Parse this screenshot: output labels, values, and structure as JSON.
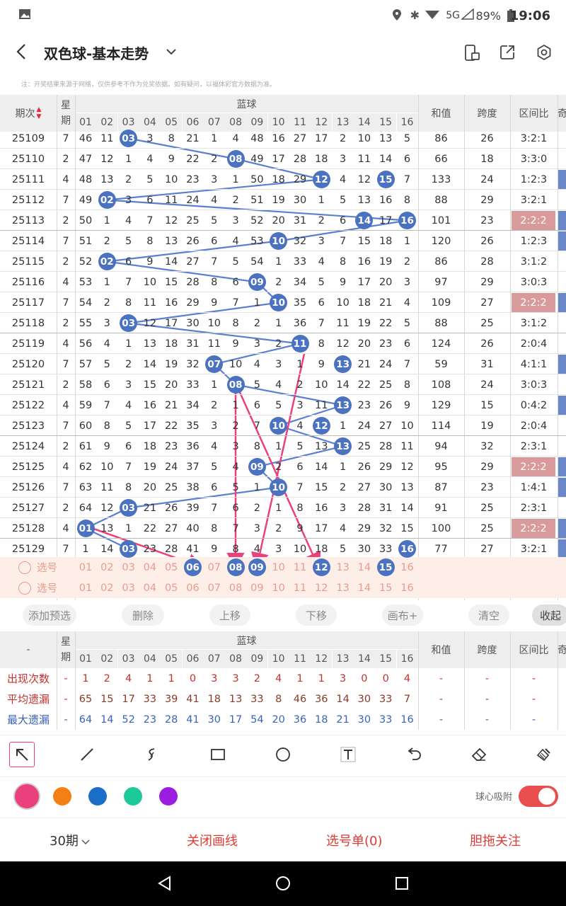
{
  "status": {
    "time": "19:06",
    "battery": "89%",
    "network": "5G"
  },
  "header": {
    "title": "双色球-基本走势"
  },
  "note": "注：开奖结果来源于网络，仅供参考不作为兑奖依据。如有疑问，以福体彩官方数据为准。",
  "table": {
    "col_period": "期次",
    "col_week": "星期",
    "col_blue": "蓝球",
    "col_sum": "和值",
    "col_span": "跨度",
    "col_ratio": "区间比",
    "numbers": [
      "01",
      "02",
      "03",
      "04",
      "05",
      "06",
      "07",
      "08",
      "09",
      "10",
      "11",
      "12",
      "13",
      "14",
      "15",
      "16"
    ],
    "rows": [
      {
        "p": "25109",
        "w": "7",
        "c": [
          "46",
          "11",
          "03",
          "3",
          "8",
          "21",
          "1",
          "4",
          "48",
          "16",
          "27",
          "17",
          "2",
          "10",
          "13",
          "5"
        ],
        "sum": "86",
        "span": "26",
        "ratio": "3:2:1"
      },
      {
        "p": "25110",
        "w": "2",
        "c": [
          "47",
          "12",
          "1",
          "4",
          "9",
          "22",
          "2",
          "08",
          "49",
          "17",
          "28",
          "18",
          "3",
          "11",
          "14",
          "6"
        ],
        "sum": "66",
        "span": "18",
        "ratio": "3:3:0"
      },
      {
        "p": "25111",
        "w": "4",
        "c": [
          "48",
          "13",
          "2",
          "5",
          "10",
          "23",
          "3",
          "1",
          "50",
          "18",
          "29",
          "12",
          "4",
          "12",
          "15",
          "7"
        ],
        "sum": "133",
        "span": "24",
        "ratio": "1:2:3"
      },
      {
        "p": "25112",
        "w": "7",
        "c": [
          "49",
          "02",
          "3",
          "6",
          "11",
          "24",
          "4",
          "2",
          "51",
          "19",
          "30",
          "1",
          "5",
          "13",
          "16",
          "8"
        ],
        "sum": "88",
        "span": "29",
        "ratio": "3:2:1"
      },
      {
        "p": "25113",
        "w": "2",
        "c": [
          "50",
          "1",
          "4",
          "7",
          "12",
          "25",
          "5",
          "3",
          "52",
          "20",
          "31",
          "2",
          "6",
          "14",
          "17",
          "16"
        ],
        "sum": "101",
        "span": "23",
        "ratio": "2:2:2"
      },
      {
        "p": "25114",
        "w": "7",
        "c": [
          "51",
          "2",
          "5",
          "8",
          "13",
          "26",
          "6",
          "4",
          "53",
          "10",
          "32",
          "3",
          "7",
          "15",
          "18",
          "1"
        ],
        "sum": "120",
        "span": "26",
        "ratio": "1:2:3"
      },
      {
        "p": "25115",
        "w": "2",
        "c": [
          "52",
          "02",
          "6",
          "9",
          "14",
          "27",
          "7",
          "5",
          "54",
          "1",
          "33",
          "4",
          "8",
          "16",
          "19",
          "2"
        ],
        "sum": "86",
        "span": "28",
        "ratio": "3:1:2"
      },
      {
        "p": "25116",
        "w": "4",
        "c": [
          "53",
          "1",
          "7",
          "10",
          "15",
          "28",
          "8",
          "6",
          "09",
          "2",
          "34",
          "5",
          "9",
          "17",
          "20",
          "3"
        ],
        "sum": "97",
        "span": "29",
        "ratio": "3:0:3"
      },
      {
        "p": "25117",
        "w": "7",
        "c": [
          "54",
          "2",
          "8",
          "11",
          "16",
          "29",
          "9",
          "7",
          "1",
          "10",
          "35",
          "6",
          "10",
          "18",
          "21",
          "4"
        ],
        "sum": "109",
        "span": "27",
        "ratio": "2:2:2"
      },
      {
        "p": "25118",
        "w": "2",
        "c": [
          "55",
          "3",
          "03",
          "12",
          "17",
          "30",
          "10",
          "8",
          "2",
          "1",
          "36",
          "7",
          "11",
          "19",
          "22",
          "5"
        ],
        "sum": "88",
        "span": "25",
        "ratio": "3:1:2"
      },
      {
        "p": "25119",
        "w": "4",
        "c": [
          "56",
          "4",
          "1",
          "13",
          "18",
          "31",
          "11",
          "9",
          "3",
          "2",
          "11",
          "8",
          "12",
          "20",
          "23",
          "6"
        ],
        "sum": "124",
        "span": "26",
        "ratio": "2:0:4"
      },
      {
        "p": "25120",
        "w": "7",
        "c": [
          "57",
          "5",
          "2",
          "14",
          "19",
          "32",
          "07",
          "10",
          "4",
          "3",
          "1",
          "9",
          "13",
          "21",
          "24",
          "7"
        ],
        "sum": "59",
        "span": "31",
        "ratio": "4:1:1"
      },
      {
        "p": "25121",
        "w": "2",
        "c": [
          "58",
          "6",
          "3",
          "15",
          "20",
          "33",
          "1",
          "08",
          "5",
          "4",
          "2",
          "10",
          "14",
          "22",
          "25",
          "8"
        ],
        "sum": "108",
        "span": "24",
        "ratio": "3:0:3"
      },
      {
        "p": "25122",
        "w": "4",
        "c": [
          "59",
          "7",
          "4",
          "16",
          "21",
          "34",
          "2",
          "1",
          "6",
          "5",
          "3",
          "11",
          "13",
          "23",
          "26",
          "9"
        ],
        "sum": "129",
        "span": "15",
        "ratio": "0:4:2"
      },
      {
        "p": "25123",
        "w": "7",
        "c": [
          "60",
          "8",
          "5",
          "17",
          "22",
          "35",
          "3",
          "2",
          "7",
          "10",
          "4",
          "12",
          "1",
          "24",
          "27",
          "10"
        ],
        "sum": "114",
        "span": "19",
        "ratio": "2:0:4"
      },
      {
        "p": "25124",
        "w": "2",
        "c": [
          "61",
          "9",
          "6",
          "18",
          "23",
          "36",
          "4",
          "3",
          "8",
          "1",
          "5",
          "13",
          "13",
          "25",
          "28",
          "11"
        ],
        "sum": "94",
        "span": "32",
        "ratio": "2:3:1"
      },
      {
        "p": "25125",
        "w": "4",
        "c": [
          "62",
          "10",
          "7",
          "19",
          "24",
          "37",
          "5",
          "4",
          "09",
          "2",
          "6",
          "14",
          "1",
          "26",
          "29",
          "12"
        ],
        "sum": "95",
        "span": "29",
        "ratio": "2:2:2"
      },
      {
        "p": "25126",
        "w": "7",
        "c": [
          "63",
          "11",
          "8",
          "20",
          "25",
          "38",
          "6",
          "5",
          "1",
          "10",
          "7",
          "15",
          "2",
          "27",
          "30",
          "13"
        ],
        "sum": "87",
        "span": "23",
        "ratio": "1:4:1"
      },
      {
        "p": "25127",
        "w": "2",
        "c": [
          "64",
          "12",
          "03",
          "21",
          "26",
          "39",
          "7",
          "6",
          "2",
          "1",
          "8",
          "16",
          "3",
          "28",
          "31",
          "14"
        ],
        "sum": "91",
        "span": "25",
        "ratio": "2:3:1"
      },
      {
        "p": "25128",
        "w": "4",
        "c": [
          "01",
          "13",
          "1",
          "22",
          "27",
          "40",
          "8",
          "7",
          "3",
          "2",
          "9",
          "17",
          "4",
          "29",
          "32",
          "15"
        ],
        "sum": "100",
        "span": "25",
        "ratio": "2:2:2"
      },
      {
        "p": "25129",
        "w": "7",
        "c": [
          "1",
          "14",
          "03",
          "23",
          "28",
          "41",
          "9",
          "8",
          "4",
          "3",
          "10",
          "18",
          "5",
          "30",
          "33",
          "16"
        ],
        "sum": "77",
        "span": "27",
        "ratio": "3:2:1"
      }
    ],
    "select_label": "选号"
  },
  "actions": {
    "add": "添加预选",
    "delete": "删除",
    "up": "上移",
    "down": "下移",
    "canvas": "画布+",
    "clear": "清空",
    "collapse": "收起"
  },
  "stats": {
    "dash": "-",
    "rows": [
      {
        "label": "出现次数",
        "vals": [
          "1",
          "2",
          "4",
          "1",
          "1",
          "0",
          "3",
          "3",
          "2",
          "4",
          "1",
          "1",
          "3",
          "0",
          "0",
          "4"
        ]
      },
      {
        "label": "平均遗漏",
        "vals": [
          "65",
          "15",
          "17",
          "33",
          "39",
          "41",
          "18",
          "13",
          "33",
          "8",
          "46",
          "36",
          "14",
          "30",
          "33",
          "7"
        ]
      },
      {
        "label": "最大遗漏",
        "vals": [
          "64",
          "14",
          "52",
          "23",
          "28",
          "41",
          "30",
          "17",
          "54",
          "20",
          "36",
          "18",
          "21",
          "30",
          "33",
          "16"
        ]
      }
    ]
  },
  "tools": {
    "snap_label": "球心吸附"
  },
  "colors": [
    "#ec3f7e",
    "#f47f12",
    "#1a6ec7",
    "#1ec99b",
    "#9b1ee0"
  ],
  "bottom": {
    "periods": "30期",
    "close_draw": "关闭画线",
    "pick_list": "选号单(0)",
    "follow": "胆拖关注"
  }
}
